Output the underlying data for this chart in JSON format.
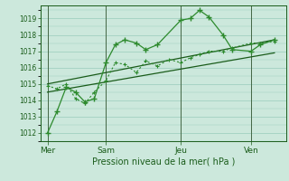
{
  "background_color": "#cce8dc",
  "plot_bg_color": "#cce8dc",
  "grid_color": "#99ccbb",
  "line_color_dark": "#1a5c1a",
  "line_color_mid": "#2d8a2d",
  "xlabel": "Pression niveau de la mer( hPa )",
  "ylim": [
    1011.5,
    1019.8
  ],
  "yticks": [
    1012,
    1013,
    1014,
    1015,
    1016,
    1017,
    1018,
    1019
  ],
  "xlim": [
    0,
    10.5
  ],
  "day_labels": [
    "Mer",
    "Sam",
    "Jeu",
    "Ven"
  ],
  "day_positions": [
    0.3,
    2.8,
    6.0,
    9.0
  ],
  "series1_x": [
    0.3,
    0.7,
    1.1,
    1.5,
    1.9,
    2.3,
    2.8,
    3.2,
    3.6,
    4.1,
    4.5,
    5.0,
    6.0,
    6.4,
    6.8,
    7.2,
    7.8,
    8.2,
    9.0,
    9.4,
    10.0
  ],
  "series1_y": [
    1012.0,
    1013.3,
    1014.8,
    1014.5,
    1013.9,
    1014.1,
    1016.3,
    1017.4,
    1017.7,
    1017.5,
    1017.1,
    1017.4,
    1018.9,
    1019.0,
    1019.5,
    1019.1,
    1018.0,
    1017.1,
    1017.0,
    1017.4,
    1017.7
  ],
  "series2_x": [
    0.3,
    0.7,
    1.1,
    1.5,
    1.9,
    2.3,
    2.8,
    3.2,
    3.6,
    4.1,
    4.5,
    5.0,
    5.5,
    6.0,
    6.4,
    6.8,
    7.2,
    7.8,
    8.2,
    9.0,
    9.4,
    10.0
  ],
  "series2_y": [
    1014.9,
    1014.7,
    1015.0,
    1014.1,
    1013.8,
    1014.5,
    1015.2,
    1016.3,
    1016.2,
    1015.7,
    1016.4,
    1016.1,
    1016.5,
    1016.3,
    1016.6,
    1016.8,
    1017.0,
    1017.0,
    1017.2,
    1017.5,
    1017.5,
    1017.6
  ],
  "series3_x": [
    0.3,
    10.0
  ],
  "series3_y": [
    1015.0,
    1017.7
  ],
  "series4_x": [
    0.3,
    10.0
  ],
  "series4_y": [
    1014.5,
    1016.9
  ],
  "vline_positions": [
    0.3,
    2.8,
    6.0,
    9.0
  ]
}
